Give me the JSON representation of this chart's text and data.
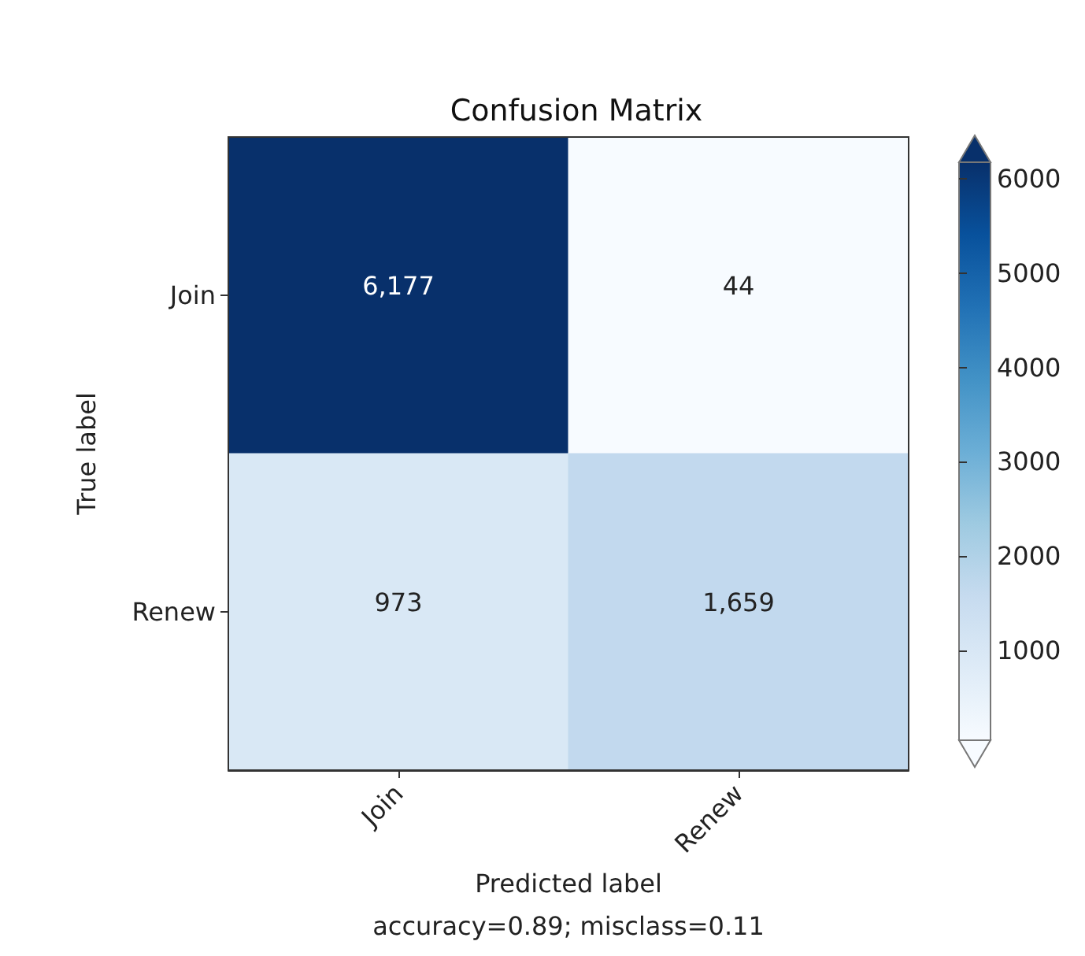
{
  "chart_data": {
    "type": "heatmap",
    "title": "Confusion Matrix",
    "xlabel": "Predicted label",
    "ylabel": "True label",
    "annotations": [
      "accuracy=0.89; misclass=0.11"
    ],
    "categories": [
      "Join",
      "Renew"
    ],
    "y_categories": [
      "Join",
      "Renew"
    ],
    "cells": [
      [
        6177,
        44
      ],
      [
        973,
        1659
      ]
    ],
    "cell_labels": [
      [
        "6,177",
        "44"
      ],
      [
        "973",
        "1,659"
      ]
    ],
    "clim": [
      44,
      6177
    ],
    "cticks": [
      1000,
      2000,
      3000,
      4000,
      5000,
      6000
    ]
  }
}
